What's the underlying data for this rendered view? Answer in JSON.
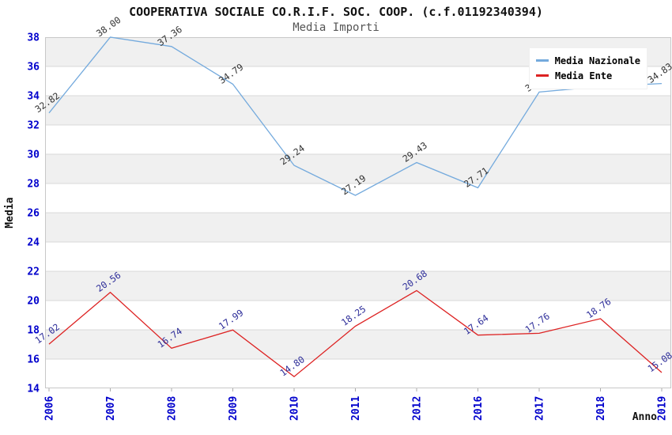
{
  "title": "COOPERATIVA SOCIALE CO.R.I.F. SOC. COOP. (c.f.01192340394)",
  "subtitle": "Media Importi",
  "legend": {
    "items": [
      {
        "label": "Media Nazionale",
        "color": "#74aadd"
      },
      {
        "label": "Media Ente",
        "color": "#dd2222"
      }
    ]
  },
  "chart_data": {
    "type": "line",
    "title": "COOPERATIVA SOCIALE CO.R.I.F. SOC. COOP. (c.f.01192340394)",
    "subtitle": "Media Importi",
    "xlabel": "Anno",
    "ylabel": "Media",
    "categories": [
      "2006",
      "2007",
      "2008",
      "2009",
      "2010",
      "2011",
      "2012",
      "2016",
      "2017",
      "2018",
      "2019"
    ],
    "series": [
      {
        "name": "Media Nazionale",
        "color": "#74aadd",
        "label_color": "#333333",
        "values": [
          32.82,
          38.0,
          37.36,
          34.79,
          29.24,
          27.19,
          29.43,
          27.71,
          34.25,
          34.63,
          34.83
        ]
      },
      {
        "name": "Media Ente",
        "color": "#dd2222",
        "label_color": "#2d2d99",
        "values": [
          17.02,
          20.56,
          16.74,
          17.99,
          14.8,
          18.25,
          20.68,
          17.64,
          17.76,
          18.76,
          15.08
        ]
      }
    ],
    "hidden_point_labels": {
      "Media Nazionale": [
        "2017",
        "2018"
      ]
    },
    "ylim": [
      14,
      38
    ],
    "ytick_step": 2,
    "grid": true,
    "legend_position": "top-right",
    "band_colors": [
      "#f0f0f0",
      "#ffffff"
    ],
    "axis_tick_label_color": "#0000cc",
    "gridline_color": "#d9d9d9",
    "frame_color": "#c8c8c8"
  }
}
